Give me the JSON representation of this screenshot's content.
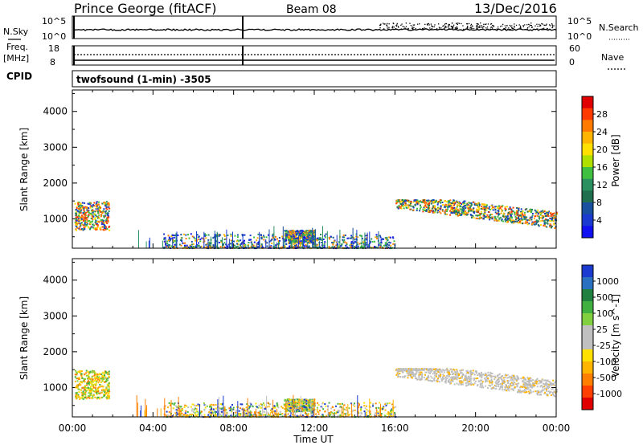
{
  "header": {
    "station": "Prince George (fitACF)",
    "beam": "Beam 08",
    "date": "13/Dec/2016"
  },
  "noise_panel": {
    "left_label": "N.Sky",
    "right_label": "N.Search",
    "left_ticks": [
      "10^5",
      "10^0"
    ],
    "right_ticks": [
      "10^5",
      "10^0"
    ]
  },
  "freq_panel": {
    "left_label_1": "Freq.",
    "left_label_2": "[MHz]",
    "right_label": "Nave",
    "left_ticks": [
      "18",
      "8"
    ],
    "right_ticks": [
      "60",
      "0"
    ],
    "cpid_label": "CPID"
  },
  "cpid_panel": {
    "text": "twofsound (1-min) -3505"
  },
  "power_panel": {
    "ylabel": "Slant Range [km]",
    "colorbar_label": "Power [dB]",
    "colorbar_ticks": [
      "28",
      "24",
      "20",
      "16",
      "12",
      "8",
      "4"
    ],
    "colorbar_colors": [
      "#e00000",
      "#ff3a00",
      "#ff7a00",
      "#ffb400",
      "#ffe000",
      "#b0e000",
      "#40c040",
      "#2a9060",
      "#207050",
      "#1a50a0",
      "#1a3ad0",
      "#1010f0"
    ]
  },
  "velocity_panel": {
    "ylabel": "Slant Range [km]",
    "colorbar_label": "Velocity [m s^-1]",
    "colorbar_ticks": [
      "1000",
      "500",
      "100",
      "25",
      "-25",
      "-100",
      "-500",
      "-1000"
    ],
    "colorbar_colors": [
      "#1a3ad0",
      "#2a70c0",
      "#208040",
      "#40b040",
      "#80d040",
      "#c0c0c0",
      "#c0c0c0",
      "#ffe000",
      "#ffb400",
      "#ff8000",
      "#ff4000",
      "#e00000"
    ]
  },
  "x_axis": {
    "label": "Time UT",
    "ticks": [
      "00:00",
      "04:00",
      "08:00",
      "12:00",
      "16:00",
      "20:00",
      "00:00"
    ]
  },
  "chart_data": [
    {
      "type": "heatmap",
      "quantity": "Power",
      "x_range_hours": [
        0,
        24
      ],
      "y_range_km": [
        180,
        4600
      ],
      "yticks": [
        1000,
        2000,
        3000,
        4000
      ],
      "color_range_db": [
        0,
        30
      ],
      "regions": [
        {
          "t0": 0.1,
          "t1": 1.8,
          "r0": 700,
          "r1": 1500,
          "level": 14
        },
        {
          "t0": 16.0,
          "t1": 24.0,
          "r0": 650,
          "r1": 1550,
          "level": 18
        },
        {
          "t0": 10.5,
          "t1": 12.0,
          "r0": 350,
          "r1": 700,
          "level": 20
        },
        {
          "t0": 4.5,
          "t1": 16.0,
          "r0": 200,
          "r1": 600,
          "level": 10
        }
      ]
    },
    {
      "type": "heatmap",
      "quantity": "Velocity",
      "x_range_hours": [
        0,
        24
      ],
      "y_range_km": [
        180,
        4600
      ],
      "yticks": [
        1000,
        2000,
        3000,
        4000
      ],
      "color_range_ms": [
        -1000,
        1000
      ],
      "regions": [
        {
          "t0": 0.1,
          "t1": 1.8,
          "r0": 700,
          "r1": 1500,
          "level": -100
        },
        {
          "t0": 16.0,
          "t1": 24.0,
          "r0": 650,
          "r1": 1550,
          "level": 0
        },
        {
          "t0": 10.5,
          "t1": 12.0,
          "r0": 350,
          "r1": 700,
          "level": 100
        },
        {
          "t0": 4.5,
          "t1": 16.0,
          "r0": 200,
          "r1": 600,
          "level": -25
        }
      ]
    }
  ]
}
